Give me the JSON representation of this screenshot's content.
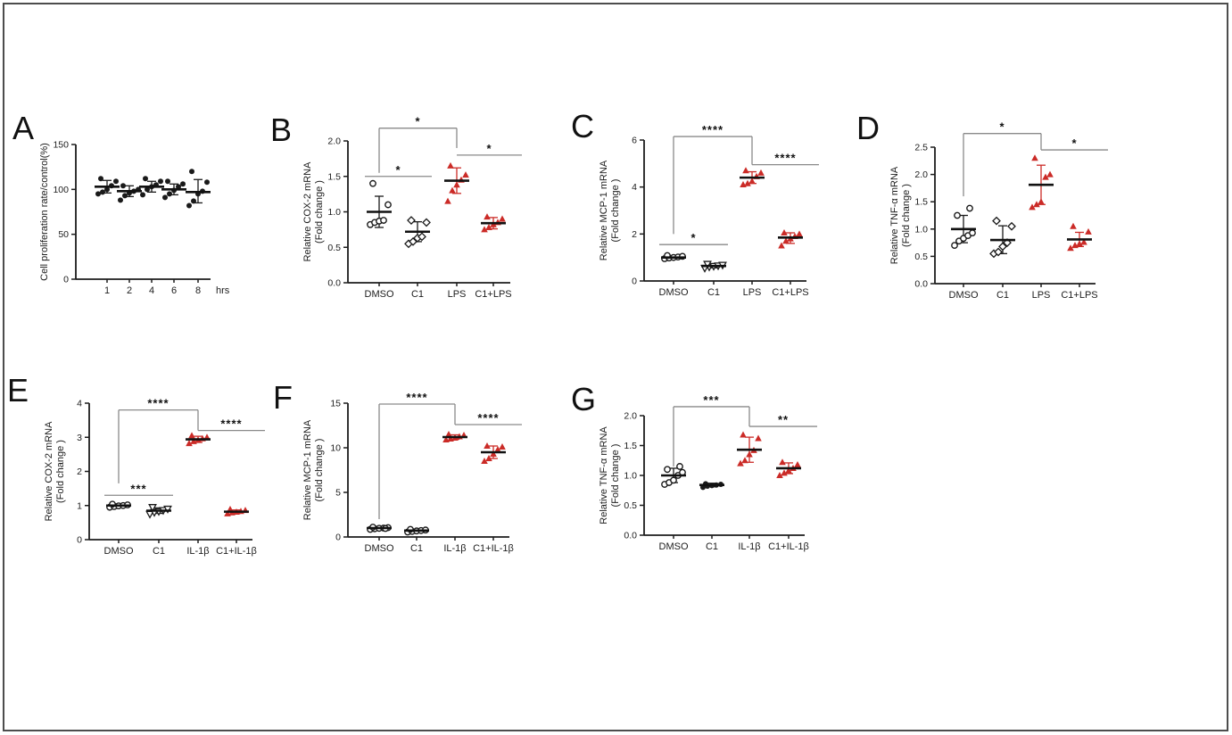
{
  "figure": {
    "background": "#ffffff",
    "border_color": "#4d4d4d",
    "black": "#1a1a1a",
    "accent_red": "#cb2b27",
    "sig_line_color": "#8a8a8a"
  },
  "chart_data": [
    {
      "panel": "A",
      "type": "scatter",
      "ylabel_lines": [
        "Cell proliferation rate/control(%)"
      ],
      "xlabel_suffix": "hrs",
      "ylim": [
        0,
        150
      ],
      "yticks": [
        0,
        50,
        100,
        150
      ],
      "ytick_labels": [
        "0",
        "50",
        "100",
        "150"
      ],
      "groups": [
        {
          "label": "1",
          "marker": "circle-filled",
          "color": "#1a1a1a",
          "values": [
            95,
            97,
            100,
            104,
            109,
            112
          ],
          "mean": 103,
          "err": [
            96,
            110
          ]
        },
        {
          "label": "2",
          "marker": "circle-filled",
          "color": "#1a1a1a",
          "values": [
            88,
            93,
            96,
            98,
            100,
            104
          ],
          "mean": 98,
          "err": [
            92,
            104
          ]
        },
        {
          "label": "4",
          "marker": "circle-filled",
          "color": "#1a1a1a",
          "values": [
            94,
            100,
            103,
            105,
            109,
            112
          ],
          "mean": 103,
          "err": [
            97,
            109
          ]
        },
        {
          "label": "6",
          "marker": "circle-filled",
          "color": "#1a1a1a",
          "values": [
            91,
            95,
            99,
            103,
            106,
            109
          ],
          "mean": 100,
          "err": [
            94,
            106
          ]
        },
        {
          "label": "8",
          "marker": "circle-filled",
          "color": "#1a1a1a",
          "values": [
            82,
            87,
            95,
            98,
            108,
            120
          ],
          "mean": 97,
          "err": [
            85,
            111
          ]
        }
      ],
      "sig": []
    },
    {
      "panel": "B",
      "type": "scatter",
      "ylabel_lines": [
        "Relative COX-2 mRNA",
        "(Fold change )"
      ],
      "ylim": [
        0,
        2.0
      ],
      "yticks": [
        0,
        0.5,
        1.0,
        1.5,
        2.0
      ],
      "ytick_labels": [
        "0.0",
        "0.5",
        "1.0",
        "1.5",
        "2.0"
      ],
      "groups": [
        {
          "label": "DMSO",
          "marker": "circle-open",
          "color": "#1a1a1a",
          "values": [
            0.82,
            0.85,
            0.87,
            0.88,
            1.1,
            1.4
          ],
          "mean": 1.0,
          "err": [
            0.78,
            1.22
          ]
        },
        {
          "label": "C1",
          "marker": "diamond-open",
          "color": "#1a1a1a",
          "values": [
            0.55,
            0.58,
            0.63,
            0.65,
            0.85,
            0.88
          ],
          "mean": 0.72,
          "err": [
            0.58,
            0.86
          ]
        },
        {
          "label": "LPS",
          "marker": "triangle-filled",
          "color": "#cb2b27",
          "values": [
            1.15,
            1.3,
            1.38,
            1.45,
            1.52,
            1.65
          ],
          "mean": 1.44,
          "err": [
            1.26,
            1.62
          ]
        },
        {
          "label": "C1+LPS",
          "marker": "triangle-filled",
          "color": "#cb2b27",
          "values": [
            0.75,
            0.78,
            0.82,
            0.85,
            0.9,
            0.93
          ],
          "mean": 0.84,
          "err": [
            0.76,
            0.92
          ]
        }
      ],
      "sig": [
        {
          "from": 0,
          "to": 1,
          "y": 1.5,
          "label": "*"
        },
        {
          "from": 0,
          "to": 2,
          "y": 2.18,
          "drop_left_to": 1.55,
          "drop_right_to": 1.9,
          "label": "*"
        },
        {
          "from": 2,
          "to": 3,
          "y": 1.8,
          "label": "*"
        }
      ]
    },
    {
      "panel": "C",
      "type": "scatter",
      "ylabel_lines": [
        "Relative MCP-1 mRNA",
        "(Fold change )"
      ],
      "ylim": [
        0,
        6
      ],
      "yticks": [
        0,
        2,
        4,
        6
      ],
      "ytick_labels": [
        "0",
        "2",
        "4",
        "6"
      ],
      "groups": [
        {
          "label": "DMSO",
          "marker": "circle-open",
          "color": "#1a1a1a",
          "values": [
            0.95,
            0.98,
            1.0,
            1.02,
            1.05,
            1.08
          ],
          "mean": 1.0,
          "err": [
            0.93,
            1.08
          ]
        },
        {
          "label": "C1",
          "marker": "triangle-open-down",
          "color": "#1a1a1a",
          "values": [
            0.55,
            0.6,
            0.63,
            0.65,
            0.68,
            0.72
          ],
          "mean": 0.64,
          "err": [
            0.56,
            0.72
          ]
        },
        {
          "label": "LPS",
          "marker": "triangle-filled",
          "color": "#cb2b27",
          "values": [
            4.1,
            4.15,
            4.25,
            4.45,
            4.6,
            4.7
          ],
          "mean": 4.4,
          "err": [
            4.15,
            4.65
          ]
        },
        {
          "label": "C1+LPS",
          "marker": "triangle-filled",
          "color": "#cb2b27",
          "values": [
            1.5,
            1.7,
            1.8,
            1.9,
            2.0,
            2.05
          ],
          "mean": 1.85,
          "err": [
            1.6,
            2.05
          ]
        }
      ],
      "sig": [
        {
          "from": 0,
          "to": 1,
          "y": 1.55,
          "label": "*"
        },
        {
          "from": 0,
          "to": 2,
          "y": 6.15,
          "drop_left_to": 2.0,
          "drop_right_to": 4.95,
          "label": "****"
        },
        {
          "from": 2,
          "to": 3,
          "y": 4.95,
          "label": "****"
        }
      ]
    },
    {
      "panel": "D",
      "type": "scatter",
      "ylabel_lines": [
        "Relative TNF-α mRNA",
        "(Fold change )"
      ],
      "ylim": [
        0,
        2.5
      ],
      "yticks": [
        0,
        0.5,
        1.0,
        1.5,
        2.0,
        2.5
      ],
      "ytick_labels": [
        "0.0",
        "0.5",
        "1.0",
        "1.5",
        "2.0",
        "2.5"
      ],
      "groups": [
        {
          "label": "DMSO",
          "marker": "circle-open",
          "color": "#1a1a1a",
          "values": [
            0.7,
            0.78,
            0.83,
            0.88,
            0.93,
            1.25,
            1.38
          ],
          "mean": 1.0,
          "err": [
            0.75,
            1.25
          ]
        },
        {
          "label": "C1",
          "marker": "diamond-open",
          "color": "#1a1a1a",
          "values": [
            0.55,
            0.58,
            0.68,
            0.75,
            1.05,
            1.15
          ],
          "mean": 0.8,
          "err": [
            0.55,
            1.06
          ]
        },
        {
          "label": "LPS",
          "marker": "triangle-filled",
          "color": "#cb2b27",
          "values": [
            1.4,
            1.45,
            1.5,
            1.95,
            2.0,
            2.3
          ],
          "mean": 1.81,
          "err": [
            1.45,
            2.17
          ]
        },
        {
          "label": "C1+LPS",
          "marker": "triangle-filled",
          "color": "#cb2b27",
          "values": [
            0.65,
            0.7,
            0.73,
            0.76,
            0.95,
            1.05
          ],
          "mean": 0.81,
          "err": [
            0.68,
            0.94
          ]
        }
      ],
      "sig": [
        {
          "from": 0,
          "to": 2,
          "y": 2.75,
          "drop_left_to": 1.6,
          "drop_right_to": 2.45,
          "label": "*"
        },
        {
          "from": 2,
          "to": 3,
          "y": 2.45,
          "label": "*"
        }
      ]
    },
    {
      "panel": "E",
      "type": "scatter",
      "ylabel_lines": [
        "Relative COX-2 mRNA",
        "(Fold change )"
      ],
      "ylim": [
        0,
        4
      ],
      "yticks": [
        0,
        1,
        2,
        3,
        4
      ],
      "ytick_labels": [
        "0",
        "1",
        "2",
        "3",
        "4"
      ],
      "groups": [
        {
          "label": "DMSO",
          "marker": "circle-open",
          "color": "#1a1a1a",
          "values": [
            0.95,
            0.97,
            0.99,
            1.0,
            1.02,
            1.04
          ],
          "mean": 1.0,
          "err": [
            0.95,
            1.05
          ]
        },
        {
          "label": "C1",
          "marker": "triangle-open-down",
          "color": "#1a1a1a",
          "values": [
            0.75,
            0.8,
            0.83,
            0.86,
            0.9,
            0.95
          ],
          "mean": 0.85,
          "err": [
            0.77,
            0.93
          ]
        },
        {
          "label": "IL-1β",
          "marker": "triangle-filled",
          "color": "#cb2b27",
          "values": [
            2.82,
            2.88,
            2.92,
            2.96,
            3.0,
            3.05
          ],
          "mean": 2.94,
          "err": [
            2.85,
            3.03
          ]
        },
        {
          "label": "C1+IL-1β",
          "marker": "triangle-filled",
          "color": "#cb2b27",
          "values": [
            0.76,
            0.79,
            0.81,
            0.83,
            0.86,
            0.89
          ],
          "mean": 0.82,
          "err": [
            0.77,
            0.87
          ]
        }
      ],
      "sig": [
        {
          "from": 0,
          "to": 1,
          "y": 1.3,
          "label": "***"
        },
        {
          "from": 0,
          "to": 2,
          "y": 3.8,
          "drop_left_to": 1.65,
          "drop_right_to": 3.2,
          "label": "****"
        },
        {
          "from": 2,
          "to": 3,
          "y": 3.2,
          "label": "****"
        }
      ]
    },
    {
      "panel": "F",
      "type": "scatter",
      "ylabel_lines": [
        "Relative MCP-1 mRNA",
        "(Fold change )"
      ],
      "ylim": [
        0,
        15
      ],
      "yticks": [
        0,
        5,
        10,
        15
      ],
      "ytick_labels": [
        "0",
        "5",
        "10",
        "15"
      ],
      "groups": [
        {
          "label": "DMSO",
          "marker": "circle-open",
          "color": "#1a1a1a",
          "values": [
            0.85,
            0.92,
            0.97,
            1.0,
            1.05,
            1.1,
            0.95
          ],
          "mean": 1.0,
          "err": [
            0.88,
            1.12
          ]
        },
        {
          "label": "C1",
          "marker": "circle-open",
          "color": "#1a1a1a",
          "values": [
            0.55,
            0.62,
            0.68,
            0.72,
            0.78,
            0.85
          ],
          "mean": 0.72,
          "err": [
            0.6,
            0.85
          ]
        },
        {
          "label": "IL-1β",
          "marker": "triangle-filled",
          "color": "#cb2b27",
          "values": [
            10.9,
            11.0,
            11.1,
            11.25,
            11.4,
            11.5
          ],
          "mean": 11.2,
          "err": [
            10.95,
            11.45
          ]
        },
        {
          "label": "C1+IL-1β",
          "marker": "triangle-filled",
          "color": "#cb2b27",
          "values": [
            8.5,
            8.8,
            9.3,
            9.8,
            10.1,
            10.2
          ],
          "mean": 9.5,
          "err": [
            8.8,
            10.2
          ]
        }
      ],
      "sig": [
        {
          "from": 0,
          "to": 2,
          "y": 14.9,
          "drop_left_to": 2.0,
          "drop_right_to": 12.6,
          "label": "****"
        },
        {
          "from": 2,
          "to": 3,
          "y": 12.6,
          "label": "****"
        }
      ]
    },
    {
      "panel": "G",
      "type": "scatter",
      "ylabel_lines": [
        "Relative TNF-α mRNA",
        "(Fold change )"
      ],
      "ylim": [
        0,
        2.0
      ],
      "yticks": [
        0,
        0.5,
        1.0,
        1.5,
        2.0
      ],
      "ytick_labels": [
        "0.0",
        "0.5",
        "1.0",
        "1.5",
        "2.0"
      ],
      "groups": [
        {
          "label": "DMSO",
          "marker": "circle-open",
          "color": "#1a1a1a",
          "values": [
            0.85,
            0.88,
            0.92,
            1.0,
            1.05,
            1.1,
            1.15
          ],
          "mean": 1.0,
          "err": [
            0.88,
            1.12
          ]
        },
        {
          "label": "C1",
          "marker": "circle-filled",
          "color": "#1a1a1a",
          "values": [
            0.8,
            0.82,
            0.83,
            0.84,
            0.85,
            0.86
          ],
          "mean": 0.84,
          "err": [
            0.81,
            0.87
          ]
        },
        {
          "label": "IL-1β",
          "marker": "triangle-filled",
          "color": "#cb2b27",
          "values": [
            1.2,
            1.25,
            1.35,
            1.42,
            1.62,
            1.68
          ],
          "mean": 1.43,
          "err": [
            1.22,
            1.64
          ]
        },
        {
          "label": "C1+IL-1β",
          "marker": "triangle-filled",
          "color": "#cb2b27",
          "values": [
            1.0,
            1.04,
            1.08,
            1.12,
            1.18,
            1.22
          ],
          "mean": 1.12,
          "err": [
            1.03,
            1.21
          ]
        }
      ],
      "sig": [
        {
          "from": 0,
          "to": 2,
          "y": 2.15,
          "drop_left_to": 1.15,
          "drop_right_to": 1.82,
          "label": "***"
        },
        {
          "from": 2,
          "to": 3,
          "y": 1.82,
          "label": "**"
        }
      ]
    }
  ]
}
